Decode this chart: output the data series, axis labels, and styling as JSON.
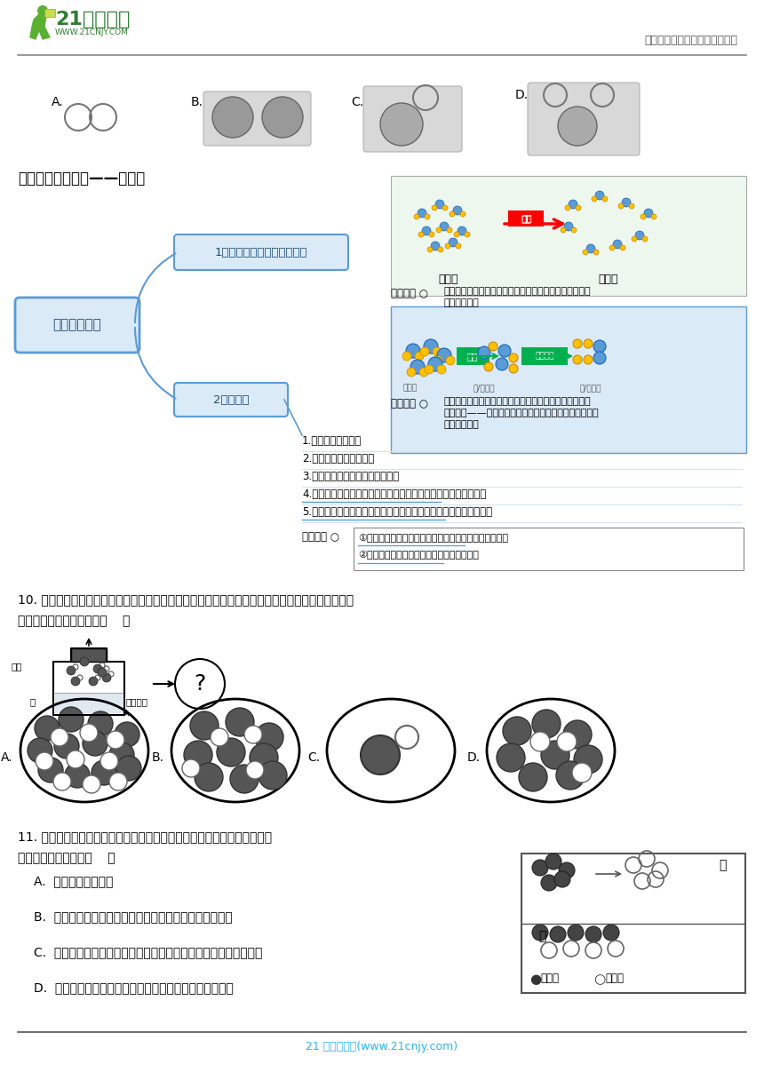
{
  "header_text": "中小学教育资源及组卷应用平台",
  "footer_text": "21 世纪教育网(www.21cnjy.com)",
  "website": "WWW.21CNJY.COM",
  "brand": "21世纪教育",
  "section3_title": "三、分子变化实例——水电解",
  "mind_map_center": "分子变化实例",
  "node1": "1、物理变化与化学变化模型",
  "node2": "2、水电解",
  "physical_change_label": "物理变化",
  "chemical_change_label": "化学变化",
  "circle_label": "○",
  "liquid_water": "液态水",
  "gas_water": "气态水",
  "physical_desc1": "水分子之间的距离变大，水分子本身没有发生变化，没有",
  "physical_desc2": "变成新的分子",
  "chemical_desc1": "水分子先分解为氢原子和氧原子，这些原子再重新组合成",
  "chemical_desc2": "新的分子——氢分子和氧分子，在这一过程中，分子的种",
  "chemical_desc3": "类发生了改变",
  "knowledge_points": [
    "1.分子由原子构成。",
    "2.水是由氢和氧组成的。",
    "3.水的电解是一个化学变化过程。",
    "4.在由分子构成的物质中，分子是保持物质化学性质的最小微粒。",
    "5.在化学变化过程中原子不能再分，原子是化学变化中的最小微粒。"
  ],
  "misconceptions": [
    "①误认为原子在任何条件下都不可分、分子一定比原子大",
    "②误认为分子是保持物质化学性质的唯一微粒"
  ],
  "misconception_label": "易错认知",
  "q10_line1": "10. 提起压在容器中水面上方的活塞，容器中的水汽化，如图所示。下列选项中，最能表示水汽化后",
  "q10_line2": "相同空间内粒子分布的是（    ）",
  "q10_labels": [
    "A.",
    "B.",
    "C.",
    "D."
  ],
  "huosai": "活塞",
  "shui": "水",
  "huosai_shangyi": "活塞上移",
  "q11_line1": "11. 如图中甲发生的是化学变化，乙发生的是物理变化，下列关于分子和原",
  "q11_line2": "子的说法中错误的是（    ）",
  "q11_options": [
    "A.  分子可以构成物质",
    "B.  由分子构成的物质，分子是保持其化学性质的最小粒子",
    "C.  在化学变化中，分子可以分成原子，原子又可以结合成新的分子",
    "D.  分子和原子之间都有空隙，分子间空隙比原子间空隙大"
  ],
  "jia_label": "甲",
  "yi_label": "乙",
  "legend_h": "氢原子",
  "legend_o": "氧原子",
  "bg_color": "#ffffff",
  "green_dark": "#2e7d32",
  "green_mid": "#4caf50",
  "teal_dark": "#006064",
  "blue_light": "#dce9f7",
  "blue_mid": "#5b9bd5",
  "blue_dark": "#1565c0",
  "gray_light": "#d9d9d9",
  "gray_mid": "#999999",
  "gray_dark": "#555555",
  "green_box_fill": "#e8f5f8",
  "green_box_border": "#a8c8d8"
}
